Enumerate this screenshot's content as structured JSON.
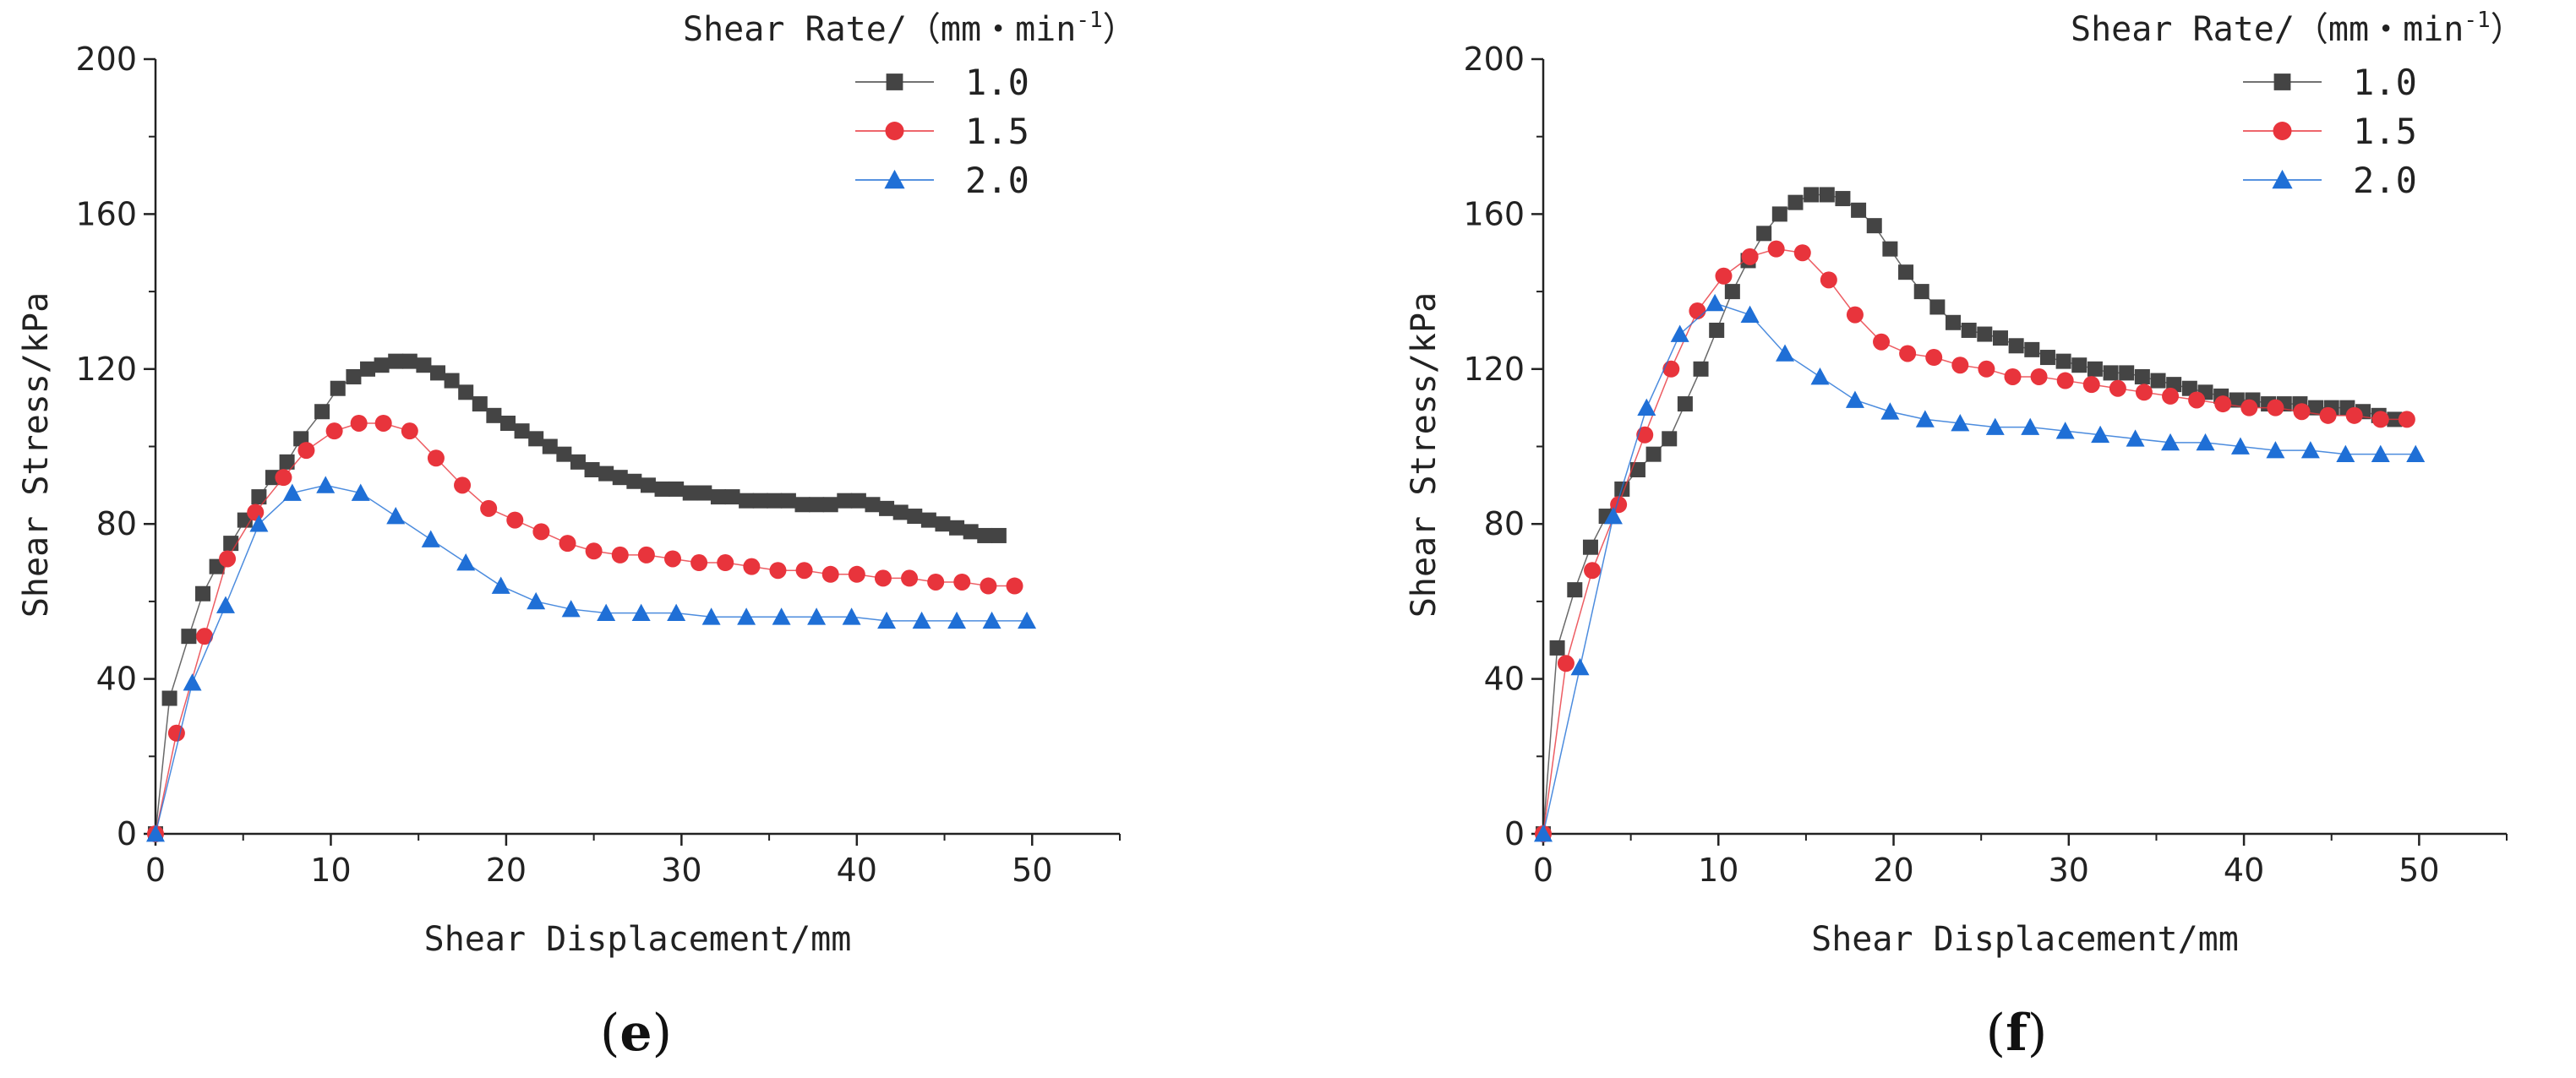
{
  "chart_data": [
    {
      "type": "line",
      "panel_label": "e",
      "xlabel": "Shear Displacement/mm",
      "ylabel": "Shear Stress/kPa",
      "xlim": [
        0,
        55
      ],
      "ylim": [
        0,
        200
      ],
      "xticks": [
        "0",
        "10",
        "20",
        "30",
        "40",
        "50"
      ],
      "yticks": [
        "0",
        "40",
        "80",
        "120",
        "160",
        "200"
      ],
      "legend_title": "Shear Rate/（mm・min",
      "legend_title_sup": "-1",
      "legend_title_end": "）",
      "legend_position": "top-right",
      "series": [
        {
          "name": "1.0",
          "color": "#444444",
          "marker": "square",
          "x": [
            0,
            0.8,
            1.9,
            2.7,
            3.5,
            4.3,
            5.1,
            5.9,
            6.7,
            7.5,
            8.3,
            9.5,
            10.4,
            11.3,
            12.1,
            12.9,
            13.7,
            14.5,
            15.3,
            16.1,
            16.9,
            17.7,
            18.5,
            19.3,
            20.1,
            20.9,
            21.7,
            22.5,
            23.3,
            24.1,
            24.9,
            25.7,
            26.5,
            27.3,
            28.1,
            28.9,
            29.7,
            30.5,
            31.3,
            32.1,
            32.9,
            33.7,
            34.5,
            35.3,
            36.1,
            36.9,
            37.7,
            38.5,
            39.3,
            40.1,
            40.9,
            41.7,
            42.5,
            43.3,
            44.1,
            44.9,
            45.7,
            46.5,
            47.3,
            48.1
          ],
          "y": [
            0,
            35,
            51,
            62,
            69,
            75,
            81,
            87,
            92,
            96,
            102,
            109,
            115,
            118,
            120,
            121,
            122,
            122,
            121,
            119,
            117,
            114,
            111,
            108,
            106,
            104,
            102,
            100,
            98,
            96,
            94,
            93,
            92,
            91,
            90,
            89,
            89,
            88,
            88,
            87,
            87,
            86,
            86,
            86,
            86,
            85,
            85,
            85,
            86,
            86,
            85,
            84,
            83,
            82,
            81,
            80,
            79,
            78,
            77,
            77
          ]
        },
        {
          "name": "1.5",
          "color": "#e8343c",
          "marker": "circle",
          "x": [
            0,
            1.2,
            2.8,
            4.1,
            5.7,
            7.3,
            8.6,
            10.2,
            11.6,
            13.0,
            14.5,
            16.0,
            17.5,
            19.0,
            20.5,
            22.0,
            23.5,
            25.0,
            26.5,
            28.0,
            29.5,
            31.0,
            32.5,
            34.0,
            35.5,
            37.0,
            38.5,
            40.0,
            41.5,
            43.0,
            44.5,
            46.0,
            47.5,
            49.0
          ],
          "y": [
            0,
            26,
            51,
            71,
            83,
            92,
            99,
            104,
            106,
            106,
            104,
            97,
            90,
            84,
            81,
            78,
            75,
            73,
            72,
            72,
            71,
            70,
            70,
            69,
            68,
            68,
            67,
            67,
            66,
            66,
            65,
            65,
            64,
            64
          ]
        },
        {
          "name": "2.0",
          "color": "#1f6fd6",
          "marker": "triangle",
          "x": [
            0,
            2.1,
            4.0,
            5.9,
            7.8,
            9.7,
            11.7,
            13.7,
            15.7,
            17.7,
            19.7,
            21.7,
            23.7,
            25.7,
            27.7,
            29.7,
            31.7,
            33.7,
            35.7,
            37.7,
            39.7,
            41.7,
            43.7,
            45.7,
            47.7,
            49.7
          ],
          "y": [
            0,
            39,
            59,
            80,
            88,
            90,
            88,
            82,
            76,
            70,
            64,
            60,
            58,
            57,
            57,
            57,
            56,
            56,
            56,
            56,
            56,
            55,
            55,
            55,
            55,
            55
          ]
        }
      ]
    },
    {
      "type": "line",
      "panel_label": "f",
      "xlabel": "Shear Displacement/mm",
      "ylabel": "Shear Stress/kPa",
      "xlim": [
        0,
        55
      ],
      "ylim": [
        0,
        200
      ],
      "xticks": [
        "0",
        "10",
        "20",
        "30",
        "40",
        "50"
      ],
      "yticks": [
        "0",
        "40",
        "80",
        "120",
        "160",
        "200"
      ],
      "legend_title": "Shear Rate/（mm・min",
      "legend_title_sup": "-1",
      "legend_title_end": "）",
      "legend_position": "top-right",
      "series": [
        {
          "name": "1.0",
          "color": "#444444",
          "marker": "square",
          "x": [
            0,
            0.8,
            1.8,
            2.7,
            3.6,
            4.5,
            5.4,
            6.3,
            7.2,
            8.1,
            9.0,
            9.9,
            10.8,
            11.7,
            12.6,
            13.5,
            14.4,
            15.3,
            16.2,
            17.1,
            18.0,
            18.9,
            19.8,
            20.7,
            21.6,
            22.5,
            23.4,
            24.3,
            25.2,
            26.1,
            27.0,
            27.9,
            28.8,
            29.7,
            30.6,
            31.5,
            32.4,
            33.3,
            34.2,
            35.1,
            36.0,
            36.9,
            37.8,
            38.7,
            39.6,
            40.5,
            41.4,
            42.3,
            43.2,
            44.1,
            45.0,
            45.9,
            46.8,
            47.7,
            48.6
          ],
          "y": [
            0,
            48,
            63,
            74,
            82,
            89,
            94,
            98,
            102,
            111,
            120,
            130,
            140,
            148,
            155,
            160,
            163,
            165,
            165,
            164,
            161,
            157,
            151,
            145,
            140,
            136,
            132,
            130,
            129,
            128,
            126,
            125,
            123,
            122,
            121,
            120,
            119,
            119,
            118,
            117,
            116,
            115,
            114,
            113,
            112,
            112,
            111,
            111,
            111,
            110,
            110,
            110,
            109,
            108,
            107
          ]
        },
        {
          "name": "1.5",
          "color": "#e8343c",
          "marker": "circle",
          "x": [
            0,
            1.3,
            2.8,
            4.3,
            5.8,
            7.3,
            8.8,
            10.3,
            11.8,
            13.3,
            14.8,
            16.3,
            17.8,
            19.3,
            20.8,
            22.3,
            23.8,
            25.3,
            26.8,
            28.3,
            29.8,
            31.3,
            32.8,
            34.3,
            35.8,
            37.3,
            38.8,
            40.3,
            41.8,
            43.3,
            44.8,
            46.3,
            47.8,
            49.3
          ],
          "y": [
            0,
            44,
            68,
            85,
            103,
            120,
            135,
            144,
            149,
            151,
            150,
            143,
            134,
            127,
            124,
            123,
            121,
            120,
            118,
            118,
            117,
            116,
            115,
            114,
            113,
            112,
            111,
            110,
            110,
            109,
            108,
            108,
            107,
            107
          ]
        },
        {
          "name": "2.0",
          "color": "#1f6fd6",
          "marker": "triangle",
          "x": [
            0,
            2.1,
            4.0,
            5.9,
            7.8,
            9.8,
            11.8,
            13.8,
            15.8,
            17.8,
            19.8,
            21.8,
            23.8,
            25.8,
            27.8,
            29.8,
            31.8,
            33.8,
            35.8,
            37.8,
            39.8,
            41.8,
            43.8,
            45.8,
            47.8,
            49.8
          ],
          "y": [
            0,
            43,
            82,
            110,
            129,
            137,
            134,
            124,
            118,
            112,
            109,
            107,
            106,
            105,
            105,
            104,
            103,
            102,
            101,
            101,
            100,
            99,
            99,
            98,
            98,
            98
          ]
        }
      ]
    }
  ]
}
